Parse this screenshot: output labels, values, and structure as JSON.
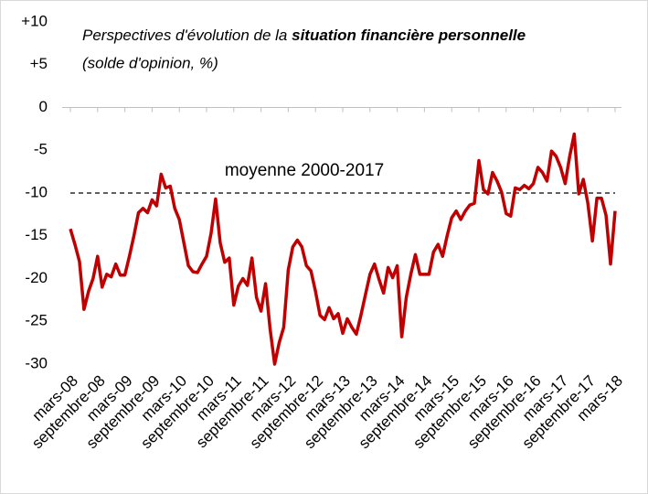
{
  "chart_data": {
    "type": "line",
    "title": "Perspectives d'évolution de la ",
    "title_bold": "situation financière personnelle",
    "subtitle": "(solde d'opinion, %)",
    "categories": [
      "mars-08",
      null,
      null,
      null,
      null,
      null,
      "septembre-08",
      null,
      null,
      null,
      null,
      null,
      "mars-09",
      null,
      null,
      null,
      null,
      null,
      "septembre-09",
      null,
      null,
      null,
      null,
      null,
      "mars-10",
      null,
      null,
      null,
      null,
      null,
      "septembre-10",
      null,
      null,
      null,
      null,
      null,
      "mars-11",
      null,
      null,
      null,
      null,
      null,
      "septembre-11",
      null,
      null,
      null,
      null,
      null,
      "mars-12",
      null,
      null,
      null,
      null,
      null,
      "septembre-12",
      null,
      null,
      null,
      null,
      null,
      "mars-13",
      null,
      null,
      null,
      null,
      null,
      "septembre-13",
      null,
      null,
      null,
      null,
      null,
      "mars-14",
      null,
      null,
      null,
      null,
      null,
      "septembre-14",
      null,
      null,
      null,
      null,
      null,
      "mars-15",
      null,
      null,
      null,
      null,
      null,
      "septembre-15",
      null,
      null,
      null,
      null,
      null,
      "mars-16",
      null,
      null,
      null,
      null,
      null,
      "septembre-16",
      null,
      null,
      null,
      null,
      null,
      "mars-17",
      null,
      null,
      null,
      null,
      null,
      "septembre-17",
      null,
      null,
      null,
      null,
      null,
      "mars-18"
    ],
    "values": [
      -14.2,
      -16,
      -18,
      -23.6,
      -21.5,
      -20,
      -17.4,
      -21,
      -19.5,
      -19.8,
      -18.3,
      -19.6,
      -19.6,
      -17.4,
      -15,
      -12.3,
      -11.8,
      -12.3,
      -10.8,
      -11.5,
      -7.8,
      -9.4,
      -9.2,
      -11.8,
      -13.1,
      -15.8,
      -18.5,
      -19.2,
      -19.3,
      -18.3,
      -17.4,
      -14.7,
      -10.7,
      -15.8,
      -18.1,
      -17.6,
      -23.1,
      -20.9,
      -20,
      -20.8,
      -17.6,
      -22.2,
      -23.8,
      -20.6,
      -25.9,
      -30,
      -27.5,
      -25.7,
      -19,
      -16.3,
      -15.5,
      -16.3,
      -18.5,
      -19.1,
      -21.5,
      -24.3,
      -24.8,
      -23.4,
      -24.7,
      -24.1,
      -26.4,
      -24.7,
      -25.7,
      -26.5,
      -24.3,
      -21.9,
      -19.5,
      -18.3,
      -20.1,
      -21.7,
      -18.7,
      -19.9,
      -18.5,
      -26.8,
      -22.2,
      -19.5,
      -17.2,
      -19.5,
      -19.5,
      -19.5,
      -16.9,
      -16,
      -17.4,
      -15,
      -12.9,
      -12.1,
      -13.1,
      -12.1,
      -11.4,
      -11.2,
      -6.2,
      -9.6,
      -10.1,
      -7.6,
      -8.6,
      -9.9,
      -12.4,
      -12.7,
      -9.4,
      -9.6,
      -9.1,
      -9.5,
      -8.9,
      -7,
      -7.6,
      -8.6,
      -5.1,
      -5.7,
      -7,
      -8.9,
      -5.7,
      -3.1,
      -10.1,
      -8.4,
      -11.2,
      -15.6,
      -10.6,
      -10.6,
      -12.6,
      -18.3,
      -12.1
    ],
    "color": "#c00000",
    "reference_line": {
      "value": -10,
      "label": "moyenne 2000-2017"
    },
    "ylim": [
      -30,
      10
    ],
    "yticks": [
      {
        "value": 10,
        "label": "+10"
      },
      {
        "value": 5,
        "label": "+5"
      },
      0,
      -5,
      -10,
      -15,
      -20,
      -25,
      -30
    ]
  }
}
